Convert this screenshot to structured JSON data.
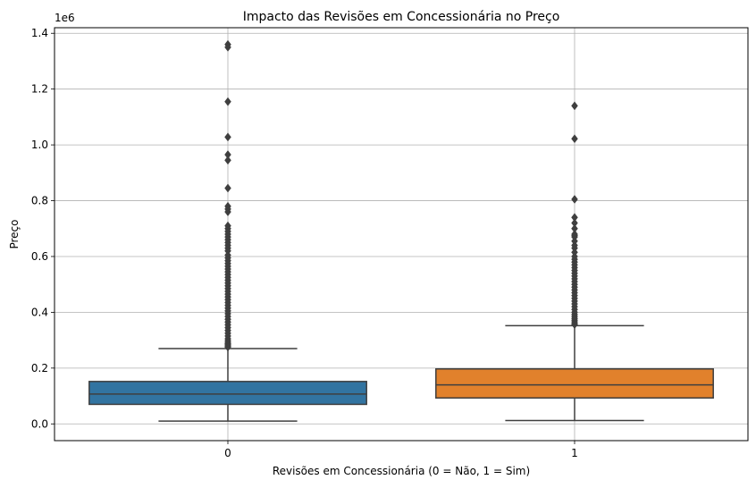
{
  "chart_data": {
    "type": "boxplot",
    "title": "Impacto das Revisões em Concessionária no Preço",
    "xlabel": "Revisões em Concessionária (0 = Não, 1 = Sim)",
    "ylabel": "Preço",
    "y_offset_label": "1e6",
    "ylim": [
      -60000,
      1420000
    ],
    "grid": true,
    "categories": [
      "0",
      "1"
    ],
    "y_ticks": [
      0,
      200000,
      400000,
      600000,
      800000,
      1000000,
      1200000,
      1400000
    ],
    "y_tick_labels": [
      "0.0",
      "0.2",
      "0.4",
      "0.6",
      "0.8",
      "1.0",
      "1.2",
      "1.4"
    ],
    "boxes": [
      {
        "category": "0",
        "color": "#3274a1",
        "whisker_low": 10000,
        "q1": 70000,
        "median": 107000,
        "q3": 152000,
        "whisker_high": 270000,
        "outliers": [
          1360000,
          1350000,
          1155000,
          1028000,
          965000,
          945000,
          845000,
          780000,
          770000,
          760000,
          710000,
          700000,
          690000,
          680000,
          670000,
          660000,
          650000,
          640000,
          630000,
          620000,
          605000,
          595000,
          585000,
          575000,
          565000,
          555000,
          545000,
          535000,
          525000,
          515000,
          505000,
          495000,
          485000,
          475000,
          465000,
          455000,
          445000,
          435000,
          425000,
          415000,
          405000,
          395000,
          385000,
          375000,
          365000,
          355000,
          345000,
          335000,
          325000,
          315000,
          305000,
          298000,
          292000,
          287000,
          283000,
          279000,
          275000
        ]
      },
      {
        "category": "1",
        "color": "#e1812c",
        "whisker_low": 12000,
        "q1": 93000,
        "median": 140000,
        "q3": 197000,
        "whisker_high": 352000,
        "outliers": [
          1140000,
          1022000,
          805000,
          740000,
          720000,
          700000,
          680000,
          675000,
          670000,
          655000,
          640000,
          630000,
          615000,
          600000,
          590000,
          580000,
          570000,
          560000,
          550000,
          540000,
          530000,
          520000,
          510000,
          500000,
          490000,
          480000,
          470000,
          460000,
          450000,
          440000,
          430000,
          420000,
          410000,
          400000,
          392000,
          385000,
          378000,
          372000,
          366000,
          360000,
          356000
        ]
      }
    ]
  }
}
